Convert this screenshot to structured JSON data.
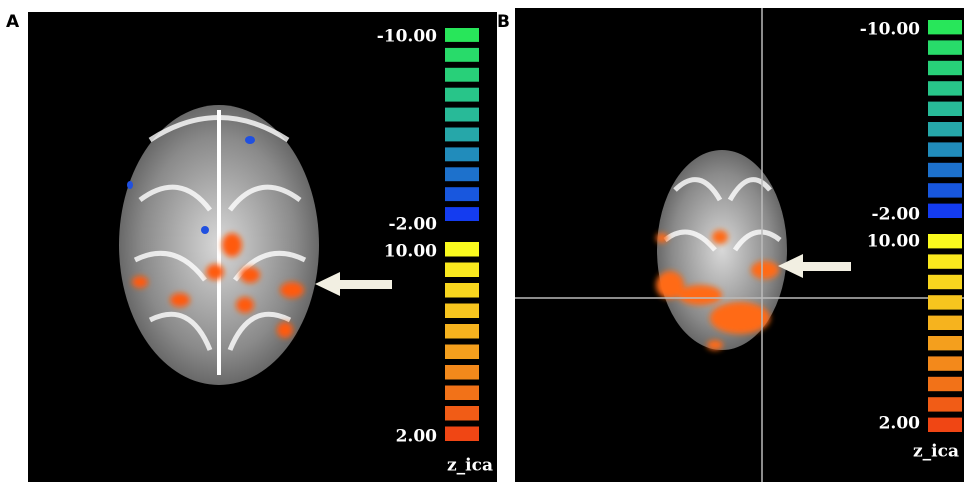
{
  "panels": [
    {
      "label": "A",
      "scale": {
        "neg_max": "-10.00",
        "neg_min": "-2.00",
        "pos_max": "10.00",
        "pos_min": "2.00",
        "name": "z_ica"
      }
    },
    {
      "label": "B",
      "scale": {
        "neg_max": "-10.00",
        "neg_min": "-2.00",
        "pos_max": "10.00",
        "pos_min": "2.00",
        "name": "z_ica"
      }
    }
  ]
}
